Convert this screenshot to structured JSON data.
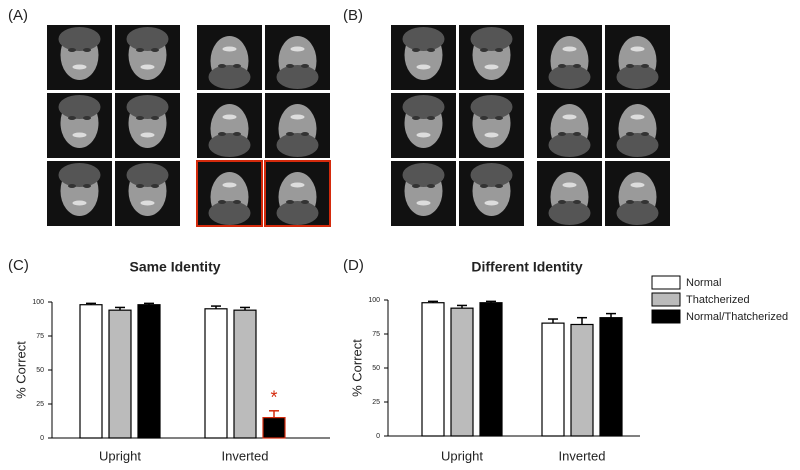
{
  "panel_labels": [
    "(A)",
    "(B)",
    "(C)",
    "(D)"
  ],
  "chart_data": [
    {
      "type": "bar",
      "title": "Same Identity",
      "y_label": "% Correct",
      "categories": [
        "Upright",
        "Inverted"
      ],
      "series": [
        {
          "color": "#ffffff",
          "values": [
            98,
            95
          ],
          "errors": [
            1,
            2
          ]
        },
        {
          "color": "#bbbbbb",
          "values": [
            94,
            94
          ],
          "errors": [
            2,
            2
          ]
        },
        {
          "color": "#000000",
          "values": [
            98,
            15
          ],
          "errors": [
            1,
            5
          ]
        }
      ],
      "ylim": [
        0,
        100
      ],
      "yticks": [
        0,
        25,
        50,
        75,
        100
      ],
      "annotations": [
        {
          "text": "*",
          "series": 2,
          "category": 1,
          "color": "#d42a0c"
        }
      ]
    },
    {
      "type": "bar",
      "title": "Different Identity",
      "y_label": "% Correct",
      "categories": [
        "Upright",
        "Inverted"
      ],
      "series": [
        {
          "name": "Normal",
          "color": "#ffffff",
          "values": [
            98,
            83
          ],
          "errors": [
            1,
            3
          ]
        },
        {
          "name": "Thatcherized",
          "color": "#bbbbbb",
          "values": [
            94,
            82
          ],
          "errors": [
            2,
            5
          ]
        },
        {
          "name": "Normal/Thatcherized",
          "color": "#000000",
          "values": [
            98,
            87
          ],
          "errors": [
            1,
            3
          ]
        }
      ],
      "ylim": [
        0,
        100
      ],
      "yticks": [
        0,
        25,
        50,
        75,
        100
      ],
      "legend": "right"
    }
  ]
}
